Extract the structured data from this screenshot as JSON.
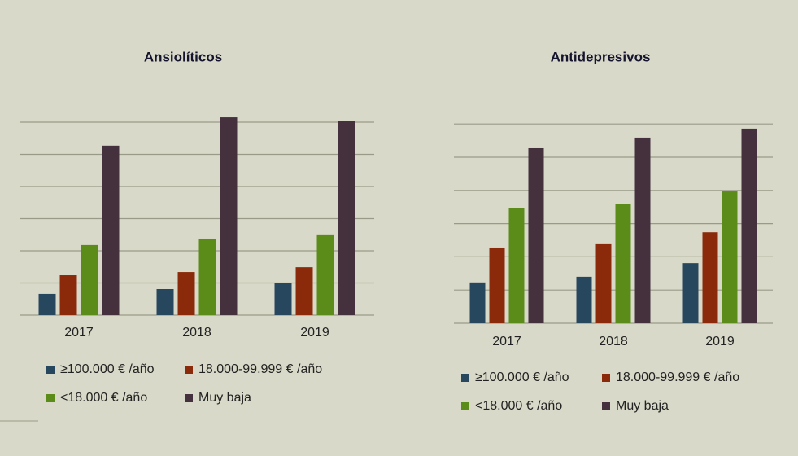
{
  "chart_data": [
    {
      "type": "bar",
      "title": "Ansiolíticos",
      "categories": [
        "2017",
        "2018",
        "2019"
      ],
      "series": [
        {
          "name": "≥100.000 € /año",
          "color": "#26475e",
          "values": [
            0.66,
            0.81,
            0.99
          ]
        },
        {
          "name": "18.000-99.999 € /año",
          "color": "#8a2a0a",
          "values": [
            1.24,
            1.34,
            1.49
          ]
        },
        {
          "name": "<18.000 € /año",
          "color": "#5b8c1a",
          "values": [
            2.18,
            2.38,
            2.51
          ]
        },
        {
          "name": "Muy baja",
          "color": "#45303e",
          "values": [
            5.27,
            6.15,
            6.03
          ]
        }
      ],
      "ylim": [
        0,
        6.2
      ],
      "yticks": [
        0,
        1,
        2,
        3,
        4,
        5,
        6
      ],
      "grid": true
    },
    {
      "type": "bar",
      "title": "Antidepresivos",
      "categories": [
        "2017",
        "2018",
        "2019"
      ],
      "series": [
        {
          "name": "≥100.000 € /año",
          "color": "#26475e",
          "values": [
            1.23,
            1.4,
            1.81
          ]
        },
        {
          "name": "18.000-99.999 € /año",
          "color": "#8a2a0a",
          "values": [
            2.28,
            2.38,
            2.74
          ]
        },
        {
          "name": "<18.000 € /año",
          "color": "#5b8c1a",
          "values": [
            3.46,
            3.58,
            3.97
          ]
        },
        {
          "name": "Muy baja",
          "color": "#45303e",
          "values": [
            5.27,
            5.59,
            5.86
          ]
        }
      ],
      "ylim": [
        0,
        6
      ],
      "yticks": [
        0,
        1,
        2,
        3,
        4,
        5,
        6
      ],
      "grid": true
    }
  ]
}
